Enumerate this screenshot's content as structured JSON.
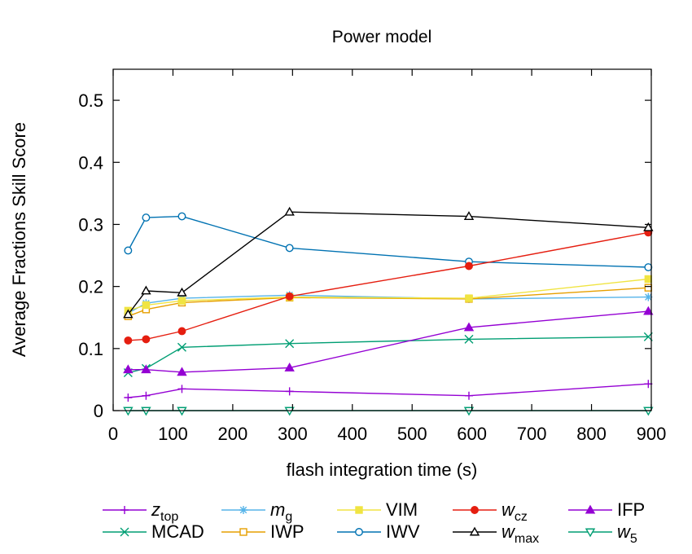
{
  "chart_data": {
    "type": "line",
    "title": "Power model",
    "xlabel": "flash integration time (s)",
    "ylabel": "Average Fractions Skill Score",
    "xlim": [
      0,
      900
    ],
    "ylim": [
      0,
      0.55
    ],
    "xticks": [
      0,
      100,
      200,
      300,
      400,
      500,
      600,
      700,
      800,
      900
    ],
    "yticks": [
      0,
      0.1,
      0.2,
      0.3,
      0.4,
      0.5
    ],
    "xtick_labels": [
      "0",
      "100",
      "200",
      "300",
      "400",
      "500",
      "600",
      "700",
      "800",
      "900"
    ],
    "ytick_labels": [
      "0",
      "0.1",
      "0.2",
      "0.3",
      "0.4",
      "0.5"
    ],
    "grid": false,
    "legend_position": "bottom",
    "x": [
      25,
      55,
      115,
      295,
      595,
      895
    ],
    "series": [
      {
        "name": "z",
        "sub": "top",
        "italic": true,
        "color": "#9400d3",
        "marker": "plus",
        "values": [
          0.021,
          0.024,
          0.035,
          0.031,
          0.024,
          0.043
        ]
      },
      {
        "name": "MCAD",
        "sub": "",
        "italic": false,
        "color": "#009e73",
        "marker": "x",
        "values": [
          0.061,
          0.068,
          0.102,
          0.108,
          0.115,
          0.119
        ]
      },
      {
        "name": "m",
        "sub": "g",
        "italic": true,
        "color": "#56b4e9",
        "marker": "star",
        "values": [
          0.157,
          0.173,
          0.181,
          0.186,
          0.18,
          0.183
        ]
      },
      {
        "name": "IWP",
        "sub": "",
        "italic": false,
        "color": "#e69f00",
        "marker": "square-open",
        "values": [
          0.152,
          0.163,
          0.174,
          0.182,
          0.18,
          0.198
        ]
      },
      {
        "name": "VIM",
        "sub": "",
        "italic": false,
        "color": "#f0e442",
        "marker": "square-filled",
        "values": [
          0.161,
          0.17,
          0.177,
          0.183,
          0.181,
          0.212
        ]
      },
      {
        "name": "IWV",
        "sub": "",
        "italic": false,
        "color": "#0072b2",
        "marker": "circle-open",
        "values": [
          0.258,
          0.311,
          0.313,
          0.262,
          0.24,
          0.231
        ]
      },
      {
        "name": "w",
        "sub": "cz",
        "italic": true,
        "color": "#e51e10",
        "marker": "circle-filled",
        "values": [
          0.113,
          0.115,
          0.128,
          0.184,
          0.233,
          0.287
        ]
      },
      {
        "name": "w",
        "sub": "max",
        "italic": true,
        "color": "#000000",
        "marker": "triangle-up-open",
        "values": [
          0.155,
          0.193,
          0.19,
          0.32,
          0.313,
          0.295
        ]
      },
      {
        "name": "IFP",
        "sub": "",
        "italic": false,
        "color": "#9400d3",
        "marker": "triangle-up-filled",
        "values": [
          0.066,
          0.066,
          0.062,
          0.069,
          0.134,
          0.16
        ]
      },
      {
        "name": "w",
        "sub": "5",
        "italic": true,
        "color": "#009e73",
        "marker": "triangle-down-open",
        "values": [
          0.0,
          0.0,
          0.0,
          0.0,
          0.0,
          0.0
        ]
      }
    ]
  }
}
